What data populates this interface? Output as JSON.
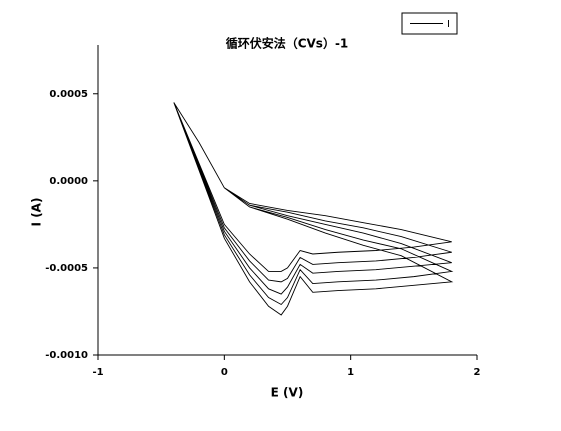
{
  "chart_data": {
    "type": "line",
    "title": "循环伏安法（CVs）-1",
    "x_label": "E (V)",
    "y_label": "I (A)",
    "xlim": [
      -1,
      2
    ],
    "xticks": [
      -1,
      0,
      1,
      2
    ],
    "ylim": [
      -0.001,
      0.00078
    ],
    "yticks": [
      {
        "value": -0.001,
        "label": "-0.0010"
      },
      {
        "value": -0.0005,
        "label": "-0.0005"
      },
      {
        "value": 0,
        "label": "0.0000"
      },
      {
        "value": 0.0005,
        "label": "0.0005"
      }
    ],
    "legend": "top-right",
    "x": [
      -0.4,
      -0.2,
      0,
      0.2,
      0.5,
      0.8,
      1.1,
      1.4,
      1.8,
      1.5,
      1.2,
      0.9,
      0.7,
      0.6,
      0.5,
      0.45,
      0.35,
      0.2,
      0,
      -0.2,
      -0.4,
      -0.2,
      0,
      0.2,
      0.5,
      0.8,
      1.1,
      1.4,
      1.8,
      1.5,
      1.2,
      0.9,
      0.7,
      0.6,
      0.5,
      0.45,
      0.35,
      0.2,
      0,
      -0.2,
      -0.4,
      -0.2,
      0,
      0.2,
      0.5,
      0.8,
      1.1,
      1.4,
      1.8,
      1.5,
      1.2,
      0.9,
      0.7,
      0.6,
      0.5,
      0.45,
      0.35,
      0.2,
      0,
      -0.2,
      -0.4,
      -0.2,
      0,
      0.2,
      0.5,
      0.8,
      1.1,
      1.4,
      1.8,
      1.5,
      1.2,
      0.9,
      0.7,
      0.6,
      0.5,
      0.45,
      0.35,
      0.2,
      0,
      -0.2,
      -0.4,
      -0.2,
      0,
      0.2,
      0.5,
      0.8,
      1.1,
      1.4,
      1.8,
      1.5,
      1.2,
      0.9,
      0.7,
      0.6,
      0.5,
      0.45,
      0.35,
      0.2,
      0,
      -0.2,
      -0.4
    ],
    "series": [
      {
        "name": "I",
        "color": "#000000",
        "values": [
          0.00045,
          0.00022,
          -4e-05,
          -0.00013,
          -0.00017,
          -0.0002,
          -0.00024,
          -0.00028,
          -0.00035,
          -0.00038,
          -0.0004,
          -0.00041,
          -0.00042,
          -0.0004,
          -0.0005,
          -0.00052,
          -0.00052,
          -0.00042,
          -0.00025,
          0.0001,
          0.00045,
          0.00022,
          -4e-05,
          -0.00014,
          -0.00018,
          -0.00023,
          -0.00027,
          -0.00032,
          -0.00041,
          -0.00044,
          -0.00046,
          -0.00047,
          -0.00048,
          -0.00044,
          -0.00056,
          -0.00058,
          -0.00057,
          -0.00046,
          -0.00027,
          9e-05,
          0.00045,
          0.00022,
          -4e-05,
          -0.00014,
          -0.0002,
          -0.00025,
          -0.0003,
          -0.00036,
          -0.00047,
          -0.00049,
          -0.00051,
          -0.00052,
          -0.00053,
          -0.00048,
          -0.00061,
          -0.00065,
          -0.00062,
          -0.0005,
          -0.00029,
          8e-05,
          0.00045,
          0.00022,
          -4e-05,
          -0.00015,
          -0.00021,
          -0.00028,
          -0.00034,
          -0.00039,
          -0.00052,
          -0.00055,
          -0.00057,
          -0.00058,
          -0.00059,
          -0.00051,
          -0.00067,
          -0.00071,
          -0.00067,
          -0.00054,
          -0.00031,
          7e-05,
          0.00045,
          0.00022,
          -4e-05,
          -0.00015,
          -0.00022,
          -0.0003,
          -0.00037,
          -0.00043,
          -0.00058,
          -0.0006,
          -0.00062,
          -0.00063,
          -0.00064,
          -0.00055,
          -0.00072,
          -0.00077,
          -0.00072,
          -0.00058,
          -0.00033,
          6e-05,
          0.00045
        ]
      }
    ]
  }
}
